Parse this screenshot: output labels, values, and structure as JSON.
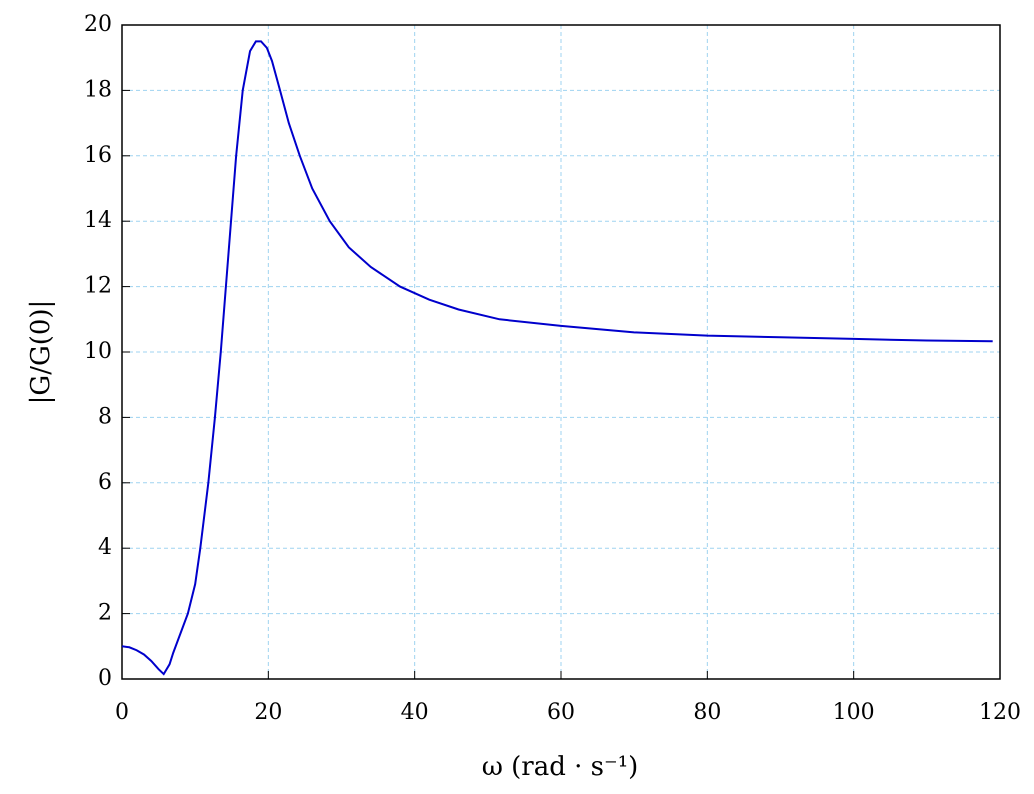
{
  "chart_data": {
    "type": "line",
    "x_label": "ω  (rad · s⁻¹)",
    "y_label": "|G/G(0)|",
    "x": [
      0,
      1,
      2,
      3,
      4,
      5,
      5.7,
      6.5,
      7,
      8,
      9,
      10,
      10.7,
      11.8,
      12.7,
      13.5,
      14.2,
      14.9,
      15.6,
      16.5,
      17.5,
      18.3,
      19,
      19.8,
      20.5,
      21.6,
      22.8,
      24.3,
      26,
      28.4,
      31,
      34,
      38,
      42,
      46,
      51.6,
      60,
      70,
      80,
      90,
      100,
      110,
      119
    ],
    "series": [
      {
        "color": "#0000cc",
        "values": [
          1,
          0.97,
          0.88,
          0.75,
          0.55,
          0.3,
          0.15,
          0.45,
          0.8,
          1.4,
          2,
          2.9,
          4,
          6,
          8,
          10,
          12,
          14,
          16,
          18,
          19.2,
          19.5,
          19.5,
          19.3,
          18.9,
          18,
          17,
          16,
          15,
          14,
          13.2,
          12.6,
          12,
          11.6,
          11.3,
          11,
          10.8,
          10.6,
          10.5,
          10.45,
          10.4,
          10.35,
          10.33
        ]
      }
    ],
    "xlim": [
      0,
      120
    ],
    "xticks": [
      0,
      20,
      40,
      60,
      80,
      100,
      120
    ],
    "ylim": [
      0,
      20
    ],
    "yticks": [
      0,
      2,
      4,
      6,
      8,
      10,
      12,
      14,
      16,
      18,
      20
    ],
    "grid": true,
    "grid_color": "#9fd3f0"
  }
}
